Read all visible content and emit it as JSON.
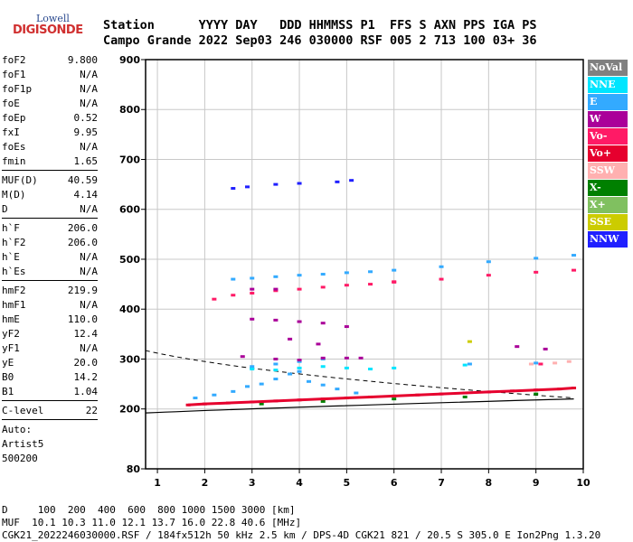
{
  "logo": {
    "line1": "Lowell",
    "line2": "DIGISONDE"
  },
  "header": {
    "row1": "Station      YYYY DAY   DDD HHMMSS P1  FFS S AXN PPS IGA PS",
    "row2": "Campo Grande 2022 Sep03 246 030000 RSF 005 2 713 100 03+ 36"
  },
  "params": [
    {
      "label": "foF2",
      "value": "9.800"
    },
    {
      "label": "foF1",
      "value": "N/A"
    },
    {
      "label": "foF1p",
      "value": "N/A"
    },
    {
      "label": "foE",
      "value": "N/A"
    },
    {
      "label": "foEp",
      "value": "0.52"
    },
    {
      "label": "fxI",
      "value": "9.95"
    },
    {
      "label": "foEs",
      "value": "N/A"
    },
    {
      "label": "fmin",
      "value": "1.65"
    },
    {
      "divider": true
    },
    {
      "label": "MUF(D)",
      "value": "40.59"
    },
    {
      "label": "M(D)",
      "value": "4.14"
    },
    {
      "label": "D",
      "value": "N/A"
    },
    {
      "divider": true
    },
    {
      "label": "h`F",
      "value": "206.0"
    },
    {
      "label": "h`F2",
      "value": "206.0"
    },
    {
      "label": "h`E",
      "value": "N/A"
    },
    {
      "label": "h`Es",
      "value": "N/A"
    },
    {
      "divider": true
    },
    {
      "label": "hmF2",
      "value": "219.9"
    },
    {
      "label": "hmF1",
      "value": "N/A"
    },
    {
      "label": "hmE",
      "value": "110.0"
    },
    {
      "label": "yF2",
      "value": "12.4"
    },
    {
      "label": "yF1",
      "value": "N/A"
    },
    {
      "label": "yE",
      "value": "20.0"
    },
    {
      "label": "B0",
      "value": "14.2"
    },
    {
      "label": "B1",
      "value": "1.04"
    },
    {
      "divider": true
    },
    {
      "label": "C-level",
      "value": "22"
    },
    {
      "divider": true
    },
    {
      "text": "Auto:"
    },
    {
      "text": "Artist5"
    },
    {
      "text": "500200"
    }
  ],
  "legend": [
    {
      "label": "NoVal",
      "color": "#808080"
    },
    {
      "label": "NNE",
      "color": "#00e5ff"
    },
    {
      "label": "E",
      "color": "#33aaff"
    },
    {
      "label": "W",
      "color": "#aa0099"
    },
    {
      "label": "Vo-",
      "color": "#ff1a66"
    },
    {
      "label": "Vo+",
      "color": "#e6002e"
    },
    {
      "label": "SSW",
      "color": "#ffb0b0"
    },
    {
      "label": "X-",
      "color": "#008000"
    },
    {
      "label": "X+",
      "color": "#80c060"
    },
    {
      "label": "SSE",
      "color": "#cccc00"
    },
    {
      "label": "NNW",
      "color": "#2020ff"
    }
  ],
  "footer": {
    "line1": "D     100  200  400  600  800 1000 1500 3000 [km]",
    "line2": "MUF  10.1 10.3 11.0 12.1 13.7 16.0 22.8 40.6 [MHz]",
    "line3": "CGK21_2022246030000.RSF / 184fx512h 50 kHz 2.5 km / DPS-4D CGK21 821 / 20.5 S 305.0 E Ion2Png 1.3.20"
  },
  "chart_data": {
    "type": "scatter",
    "x_ticks": [
      "1",
      "2",
      "3",
      "4",
      "5",
      "6",
      "7",
      "8",
      "9",
      "10"
    ],
    "y_ticks": [
      "80",
      "200",
      "300",
      "400",
      "500",
      "600",
      "700",
      "800",
      "900"
    ],
    "xlim": [
      0.75,
      10
    ],
    "ylim": [
      80,
      900
    ],
    "grid": true,
    "series": [
      {
        "name": "Vo+",
        "color": "#e6002e",
        "points": [
          [
            1.65,
            208
          ],
          [
            2,
            210
          ],
          [
            2.5,
            212
          ],
          [
            3,
            214
          ],
          [
            3.5,
            216
          ],
          [
            4,
            218
          ],
          [
            4.5,
            220
          ],
          [
            5,
            222
          ],
          [
            5.5,
            224
          ],
          [
            6,
            226
          ],
          [
            6.5,
            228
          ],
          [
            7,
            230
          ],
          [
            7.5,
            232
          ],
          [
            8,
            234
          ],
          [
            8.5,
            236
          ],
          [
            9,
            238
          ],
          [
            9.5,
            240
          ],
          [
            9.8,
            242
          ]
        ]
      },
      {
        "name": "E",
        "color": "#33aaff",
        "points": [
          [
            1.8,
            222
          ],
          [
            2.2,
            228
          ],
          [
            2.6,
            235
          ],
          [
            2.9,
            245
          ],
          [
            3.2,
            250
          ],
          [
            3.5,
            260
          ],
          [
            3.8,
            270
          ],
          [
            4,
            275
          ],
          [
            4.2,
            255
          ],
          [
            4.5,
            248
          ],
          [
            4.8,
            240
          ],
          [
            5.2,
            232
          ],
          [
            2.6,
            460
          ],
          [
            3,
            462
          ],
          [
            3.5,
            465
          ],
          [
            4,
            468
          ],
          [
            4.5,
            470
          ],
          [
            5,
            473
          ],
          [
            5.5,
            475
          ],
          [
            6,
            478
          ],
          [
            7,
            485
          ],
          [
            8,
            495
          ],
          [
            9,
            502
          ],
          [
            9.8,
            508
          ],
          [
            3,
            285
          ],
          [
            3.5,
            290
          ],
          [
            4,
            295
          ],
          [
            4.5,
            300
          ],
          [
            7.6,
            290
          ],
          [
            9,
            292
          ]
        ]
      },
      {
        "name": "NNE",
        "color": "#00e5ff",
        "points": [
          [
            3,
            280
          ],
          [
            3.5,
            278
          ],
          [
            4,
            282
          ],
          [
            4.5,
            285
          ],
          [
            5,
            282
          ],
          [
            5.5,
            280
          ],
          [
            6,
            282
          ],
          [
            7.5,
            288
          ]
        ]
      },
      {
        "name": "Vo-",
        "color": "#ff1a66",
        "points": [
          [
            2.2,
            420
          ],
          [
            2.6,
            428
          ],
          [
            3,
            432
          ],
          [
            3.5,
            437
          ],
          [
            4,
            440
          ],
          [
            4.5,
            444
          ],
          [
            5,
            448
          ],
          [
            5.5,
            450
          ],
          [
            6,
            454
          ],
          [
            7,
            460
          ],
          [
            8,
            468
          ],
          [
            9,
            474
          ],
          [
            9.8,
            478
          ],
          [
            6,
            455
          ],
          [
            9.1,
            290
          ]
        ]
      },
      {
        "name": "W",
        "color": "#aa0099",
        "points": [
          [
            3,
            380
          ],
          [
            3.5,
            378
          ],
          [
            4,
            375
          ],
          [
            4.5,
            372
          ],
          [
            5,
            365
          ],
          [
            3.8,
            340
          ],
          [
            4.4,
            330
          ],
          [
            2.8,
            305
          ],
          [
            3.5,
            300
          ],
          [
            4,
            298
          ],
          [
            4.5,
            302
          ],
          [
            5,
            302
          ],
          [
            5.3,
            302
          ],
          [
            8.6,
            325
          ],
          [
            9.2,
            320
          ],
          [
            3,
            440
          ],
          [
            3.5,
            440
          ]
        ]
      },
      {
        "name": "NNW",
        "color": "#2020ff",
        "points": [
          [
            2.6,
            642
          ],
          [
            2.9,
            645
          ],
          [
            3.5,
            650
          ],
          [
            4,
            652
          ],
          [
            4.8,
            655
          ],
          [
            5.1,
            658
          ]
        ]
      },
      {
        "name": "X-",
        "color": "#008000",
        "points": [
          [
            3.2,
            210
          ],
          [
            4.5,
            215
          ],
          [
            6,
            220
          ],
          [
            7.5,
            224
          ],
          [
            9,
            230
          ]
        ]
      },
      {
        "name": "SSE",
        "color": "#cccc00",
        "points": [
          [
            7.6,
            335
          ]
        ]
      },
      {
        "name": "SSW",
        "color": "#ffb0b0",
        "points": [
          [
            8.9,
            290
          ],
          [
            9.4,
            292
          ],
          [
            9.7,
            295
          ]
        ]
      }
    ]
  }
}
